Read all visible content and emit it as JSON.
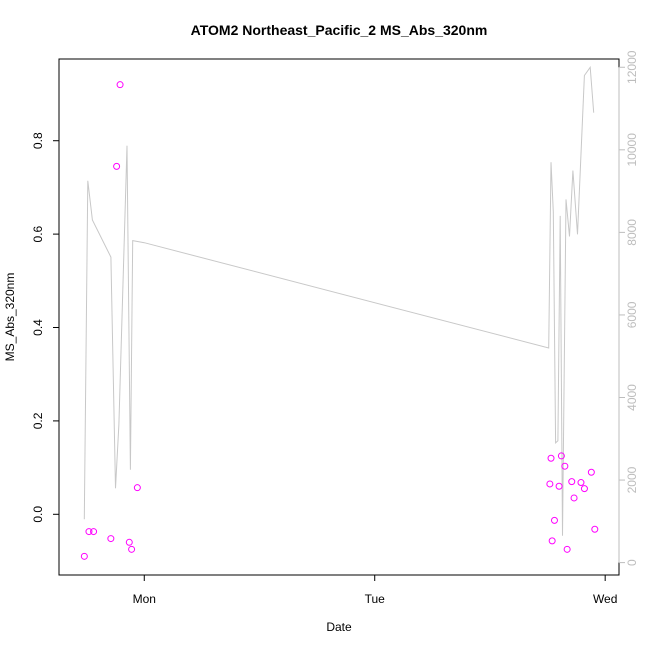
{
  "chart_data": {
    "type": "scatter",
    "title": "ATOM2 Northeast_Pacific_2 MS_Abs_320nm",
    "xlabel": "Date",
    "ylabel": "MS_Abs_320nm",
    "x_axis": {
      "ticks": [
        {
          "label": "Mon",
          "value": 1.0
        },
        {
          "label": "Tue",
          "value": 2.0
        },
        {
          "label": "Wed",
          "value": 3.0
        }
      ],
      "range": [
        0.63,
        3.06
      ]
    },
    "y_axis_left": {
      "range": [
        -0.13,
        0.975
      ],
      "ticks": [
        {
          "label": "0.0",
          "value": 0.0
        },
        {
          "label": "0.2",
          "value": 0.2
        },
        {
          "label": "0.4",
          "value": 0.4
        },
        {
          "label": "0.6",
          "value": 0.6
        },
        {
          "label": "0.8",
          "value": 0.8
        }
      ]
    },
    "y_axis_right": {
      "range": [
        -300,
        12200
      ],
      "ticks": [
        {
          "label": "0",
          "value": 0
        },
        {
          "label": "2000",
          "value": 2000
        },
        {
          "label": "4000",
          "value": 4000
        },
        {
          "label": "6000",
          "value": 6000
        },
        {
          "label": "8000",
          "value": 8000
        },
        {
          "label": "10000",
          "value": 10000
        },
        {
          "label": "12000",
          "value": 12000
        }
      ]
    },
    "series": [
      {
        "kind": "points",
        "axis": "left",
        "color": "#ff00ff",
        "x": [
          0.74,
          0.76,
          0.78,
          0.855,
          0.88,
          0.895,
          0.935,
          0.945,
          0.97,
          2.76,
          2.765,
          2.77,
          2.78,
          2.8,
          2.81,
          2.825,
          2.835,
          2.855,
          2.865,
          2.895,
          2.91,
          2.94,
          2.955
        ],
        "y": [
          -0.09,
          -0.037,
          -0.037,
          -0.052,
          0.745,
          0.92,
          -0.06,
          -0.075,
          0.057,
          0.065,
          0.12,
          -0.057,
          -0.013,
          0.06,
          0.125,
          0.103,
          -0.075,
          0.07,
          0.035,
          0.068,
          0.055,
          0.09,
          -0.032
        ]
      },
      {
        "kind": "line",
        "axis": "right",
        "color": "#c8c8c8",
        "x": [
          0.74,
          0.755,
          0.775,
          0.855,
          0.875,
          0.89,
          0.925,
          0.94,
          0.95,
          1.0,
          2.755,
          2.765,
          2.775,
          2.785,
          2.795,
          2.805,
          2.815,
          2.83,
          2.845,
          2.86,
          2.88,
          2.91,
          2.935,
          2.95
        ],
        "y": [
          1050,
          9250,
          8300,
          7400,
          1800,
          3350,
          10100,
          2250,
          7800,
          7750,
          5200,
          9700,
          8500,
          2900,
          2950,
          8400,
          650,
          8800,
          7900,
          9500,
          7950,
          11800,
          12000,
          10900
        ]
      }
    ],
    "grid": false,
    "legend": "none"
  }
}
